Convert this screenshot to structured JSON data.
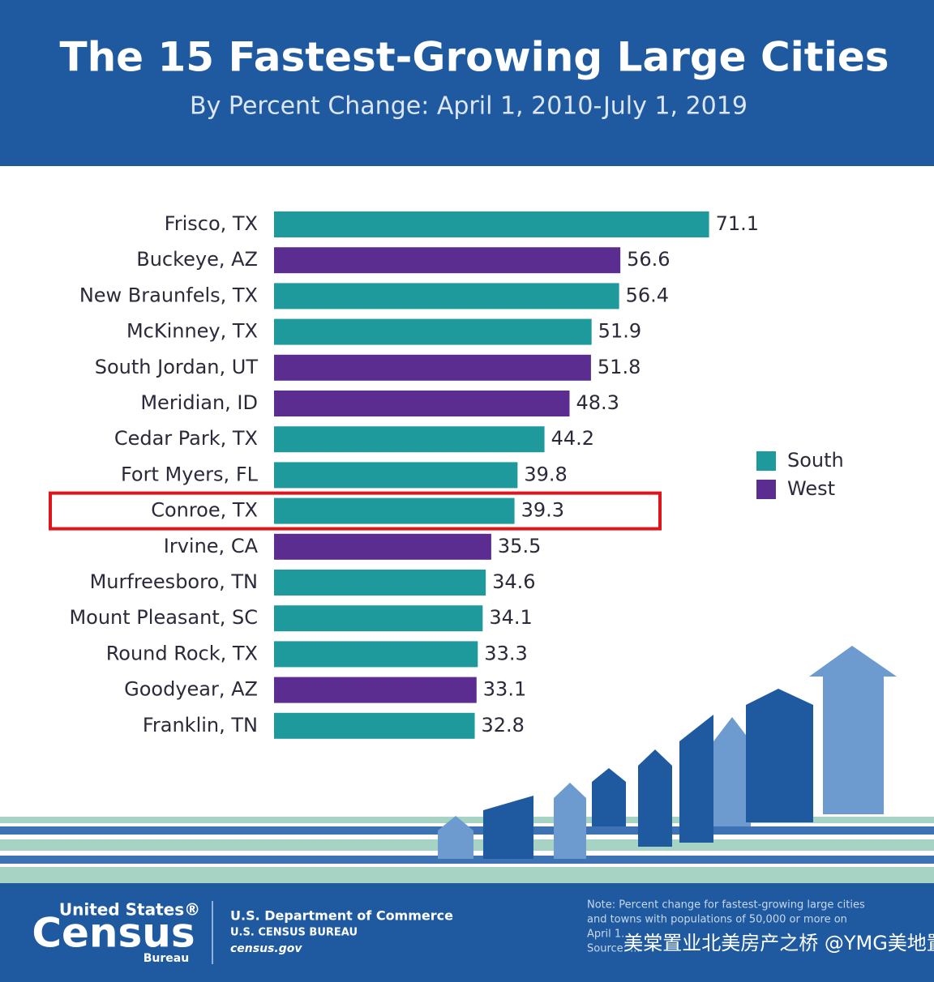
{
  "chart_data": {
    "type": "bar",
    "orientation": "horizontal",
    "title": "The 15 Fastest-Growing Large Cities",
    "subtitle": "By Percent Change: April 1, 2010-July 1, 2019",
    "categories": [
      "Frisco, TX",
      "Buckeye, AZ",
      "New Braunfels, TX",
      "McKinney, TX",
      "South Jordan, UT",
      "Meridian, ID",
      "Cedar Park, TX",
      "Fort Myers, FL",
      "Conroe, TX",
      "Irvine, CA",
      "Murfreesboro, TN",
      "Mount Pleasant, SC",
      "Round Rock, TX",
      "Goodyear, AZ",
      "Franklin, TN"
    ],
    "values": [
      71.1,
      56.6,
      56.4,
      51.9,
      51.8,
      48.3,
      44.2,
      39.8,
      39.3,
      35.5,
      34.6,
      34.1,
      33.3,
      33.1,
      32.8
    ],
    "bar_colors": [
      "#1f9a9c",
      "#5b2d90",
      "#1f9a9c",
      "#1f9a9c",
      "#5b2d90",
      "#5b2d90",
      "#1f9a9c",
      "#1f9a9c",
      "#1f9a9c",
      "#5b2d90",
      "#1f9a9c",
      "#1f9a9c",
      "#1f9a9c",
      "#5b2d90",
      "#1f9a9c"
    ],
    "legend": [
      {
        "name": "South",
        "color": "#1f9a9c"
      },
      {
        "name": "West",
        "color": "#5b2d90"
      }
    ],
    "highlight_index": 8,
    "xlim": [
      0,
      75
    ]
  },
  "footer": {
    "logo_top": "United States®",
    "logo_main": "Census",
    "logo_bottom": "Bureau",
    "department": "U.S. Department of Commerce",
    "bureau": "U.S. CENSUS BUREAU",
    "website": "census.gov",
    "note": [
      "Note: Percent change for fastest-growing large cities",
      "and towns with populations of 50,000 or more on",
      "April 1...",
      "Source: ..."
    ],
    "watermark": "美棠置业北美房产之桥 @YMG美地置业"
  }
}
